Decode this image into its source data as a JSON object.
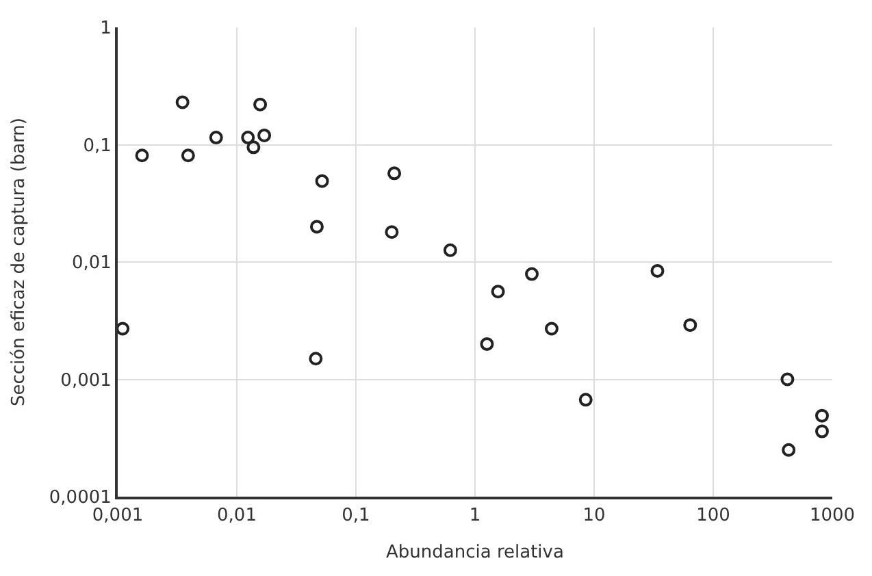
{
  "chart_data": {
    "type": "scatter",
    "xlabel": "Abundancia relativa",
    "ylabel": "Sección eficaz de captura (barn)",
    "log": "xy",
    "grid": true,
    "marker": "circle",
    "color": "#222222",
    "x": [
      0.0011,
      0.0016,
      0.0035,
      0.0039,
      0.0067,
      0.0124,
      0.0138,
      0.0157,
      0.017,
      0.047,
      0.052,
      0.046,
      0.2,
      0.21,
      0.62,
      1.26,
      1.56,
      3.0,
      4.4,
      8.5,
      34,
      64,
      420,
      430,
      820,
      820
    ],
    "values": [
      0.0027,
      0.081,
      0.23,
      0.081,
      0.115,
      0.115,
      0.095,
      0.22,
      0.12,
      0.02,
      0.049,
      0.0015,
      0.018,
      0.057,
      0.0126,
      0.002,
      0.0056,
      0.0079,
      0.0027,
      0.00067,
      0.0084,
      0.0029,
      0.001,
      0.00025,
      0.00049,
      0.00036
    ],
    "xlim": [
      0.001,
      1000
    ],
    "ylim": [
      0.0001,
      1
    ],
    "xticks": [
      {
        "value": 0.001,
        "label": "0,001"
      },
      {
        "value": 0.01,
        "label": "0,01"
      },
      {
        "value": 0.1,
        "label": "0,1"
      },
      1,
      10,
      100,
      1000
    ],
    "yticks": [
      {
        "value": 0.0001,
        "label": "0,0001"
      },
      {
        "value": 0.001,
        "label": "0,001"
      },
      {
        "value": 0.01,
        "label": "0,01"
      },
      {
        "value": 0.1,
        "label": "0,1"
      },
      1
    ]
  }
}
